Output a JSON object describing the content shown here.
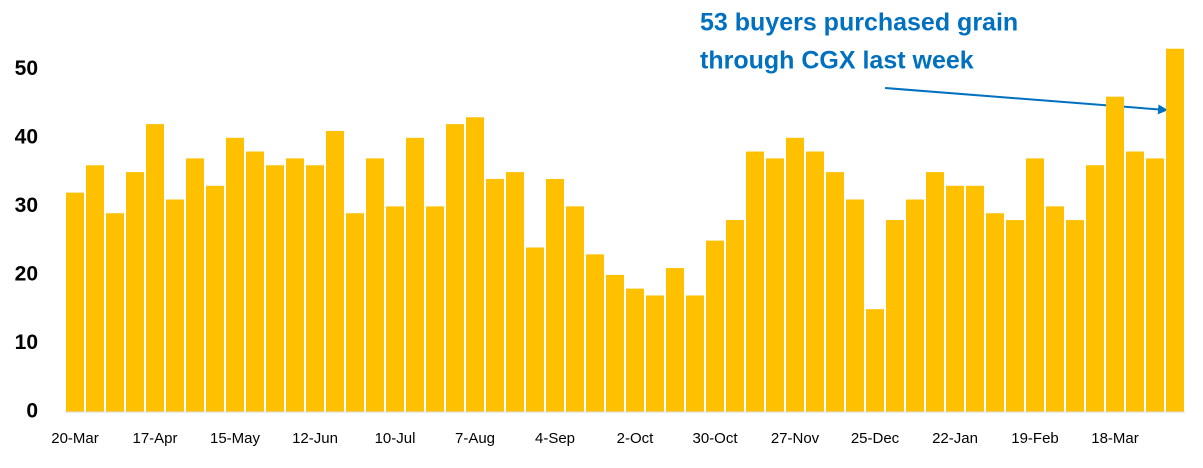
{
  "chart_data": {
    "type": "bar",
    "annotation": [
      "53 buyers purchased grain",
      "through CGX last week"
    ],
    "annotation_color": "#0070c0",
    "categories": [
      "20-Mar",
      null,
      null,
      null,
      "17-Apr",
      null,
      null,
      null,
      "15-May",
      null,
      null,
      null,
      "12-Jun",
      null,
      null,
      null,
      "10-Jul",
      null,
      null,
      null,
      "7-Aug",
      null,
      null,
      null,
      "4-Sep",
      null,
      null,
      null,
      "2-Oct",
      null,
      null,
      null,
      "30-Oct",
      null,
      null,
      null,
      "27-Nov",
      null,
      null,
      null,
      "25-Dec",
      null,
      null,
      null,
      "22-Jan",
      null,
      null,
      null,
      "19-Feb",
      null,
      null,
      null,
      "18-Mar",
      null,
      null,
      null
    ],
    "values": [
      32,
      36,
      29,
      35,
      42,
      31,
      37,
      33,
      40,
      38,
      36,
      37,
      36,
      41,
      29,
      37,
      30,
      40,
      30,
      42,
      43,
      34,
      35,
      24,
      34,
      30,
      23,
      20,
      18,
      17,
      21,
      17,
      25,
      28,
      38,
      37,
      40,
      38,
      35,
      31,
      15,
      28,
      31,
      35,
      33,
      33,
      29,
      28,
      37,
      30,
      28,
      36,
      46,
      38,
      37,
      53
    ],
    "color": "#ffc000",
    "ylim": [
      0,
      55
    ],
    "yticks": [
      0,
      10,
      20,
      30,
      40,
      50
    ],
    "grid": false
  }
}
